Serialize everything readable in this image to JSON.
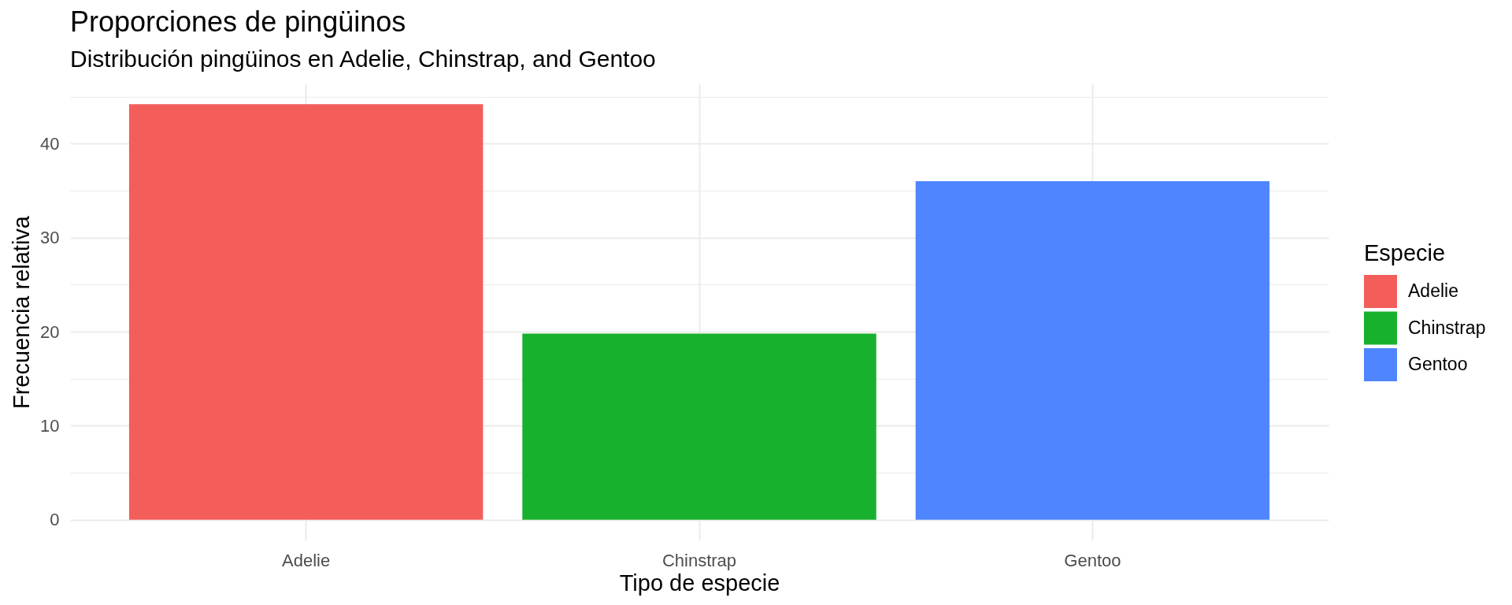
{
  "chart_data": {
    "type": "bar",
    "title": "Proporciones de pingüinos",
    "subtitle": "Distribución pingüinos en Adelie, Chinstrap, and Gentoo",
    "xlabel": "Tipo de especie",
    "ylabel": "Frecuencia relativa",
    "legend_title": "Especie",
    "categories": [
      "Adelie",
      "Chinstrap",
      "Gentoo"
    ],
    "series": [
      {
        "name": "Adelie",
        "color": "#f35e5a",
        "values": [
          44.2,
          null,
          null
        ]
      },
      {
        "name": "Chinstrap",
        "color": "#18b12e",
        "values": [
          null,
          19.8,
          null
        ]
      },
      {
        "name": "Gentoo",
        "color": "#4f86ff",
        "values": [
          null,
          null,
          36.0
        ]
      }
    ],
    "ylim": [
      -2.2,
      46.4
    ],
    "yticks": [
      0,
      {
        "value": 5,
        "label": null
      },
      10,
      {
        "value": 15,
        "label": null
      },
      20,
      {
        "value": 25,
        "label": null
      },
      30,
      {
        "value": 35,
        "label": null
      },
      40,
      {
        "value": 45,
        "label": null
      }
    ],
    "grid": true,
    "legend": "right"
  }
}
